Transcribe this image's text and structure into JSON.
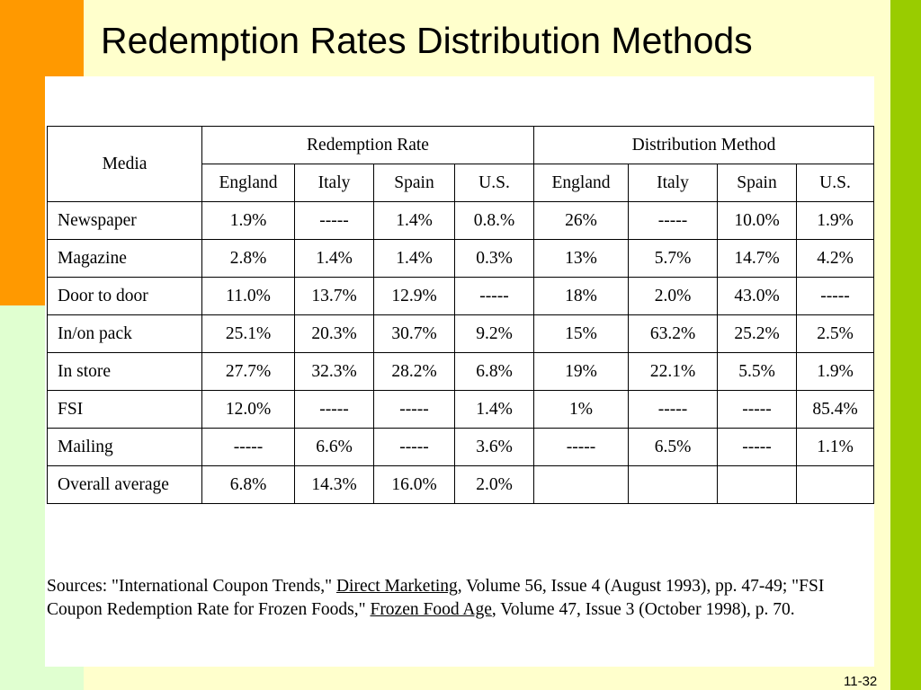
{
  "slide": {
    "title": "Redemption Rates Distribution Methods",
    "page_number": "11-32",
    "colors": {
      "background": "#ffffcc",
      "orange_bar": "#ff9900",
      "green_bar": "#99cc00",
      "light_green": "#e0ffd0"
    }
  },
  "table": {
    "media_header": "Media",
    "group_headers": [
      "Redemption Rate",
      "Distribution Method"
    ],
    "countries": [
      "England",
      "Italy",
      "Spain",
      "U.S.",
      "England",
      "Italy",
      "Spain",
      "U.S."
    ],
    "rows": [
      {
        "media": "Newspaper",
        "values": [
          "1.9%",
          "-----",
          "1.4%",
          "0.8.%",
          "26%",
          "-----",
          "10.0%",
          "1.9%"
        ]
      },
      {
        "media": "Magazine",
        "values": [
          "2.8%",
          "1.4%",
          "1.4%",
          "0.3%",
          "13%",
          "5.7%",
          "14.7%",
          "4.2%"
        ]
      },
      {
        "media": "Door to door",
        "values": [
          "11.0%",
          "13.7%",
          "12.9%",
          "-----",
          "18%",
          "2.0%",
          "43.0%",
          "-----"
        ]
      },
      {
        "media": "In/on pack",
        "values": [
          "25.1%",
          "20.3%",
          "30.7%",
          "9.2%",
          "15%",
          "63.2%",
          "25.2%",
          "2.5%"
        ]
      },
      {
        "media": "In store",
        "values": [
          "27.7%",
          "32.3%",
          "28.2%",
          "6.8%",
          "19%",
          "22.1%",
          "5.5%",
          "1.9%"
        ]
      },
      {
        "media": "FSI",
        "values": [
          "12.0%",
          "-----",
          "-----",
          "1.4%",
          "1%",
          "-----",
          "-----",
          "85.4%"
        ]
      },
      {
        "media": "Mailing",
        "values": [
          "-----",
          "6.6%",
          "-----",
          "3.6%",
          "-----",
          "6.5%",
          "-----",
          "1.1%"
        ]
      },
      {
        "media": "Overall average",
        "values": [
          "6.8%",
          "14.3%",
          "16.0%",
          "2.0%",
          "",
          "",
          "",
          ""
        ]
      }
    ]
  },
  "sources": {
    "part1": "Sources: \"International Coupon Trends,\" ",
    "link1": "Direct Marketing",
    "part2": ", Volume 56, Issue 4 (August 1993), pp. 47-49; \"FSI Coupon Redemption Rate for Frozen Foods,\" ",
    "link2": "Frozen Food Age",
    "part3": ", Volume 47, Issue 3 (October 1998), p. 70."
  }
}
